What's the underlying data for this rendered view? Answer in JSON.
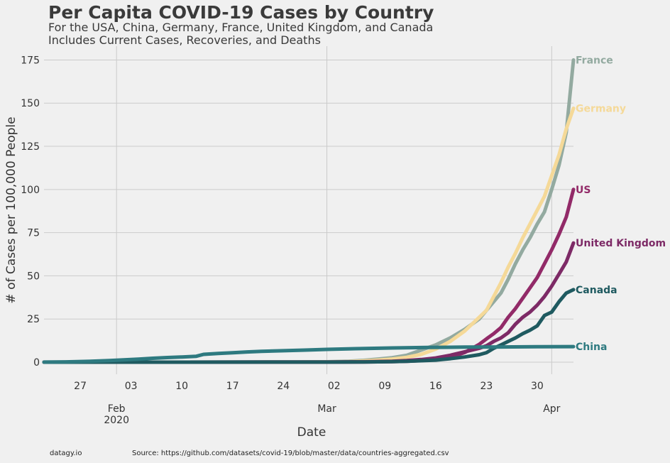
{
  "chart_data": {
    "type": "line",
    "title": "Per Capita COVID-19 Cases by Country",
    "subtitle": [
      "For the USA, China, Germany, France, United Kingdom, and Canada",
      "Includes Current Cases, Recoveries, and Deaths"
    ],
    "xlabel": "Date",
    "ylabel": "# of Cases per 100,000 People",
    "xlim": [
      "2020-01-22",
      "2020-04-04"
    ],
    "ylim": [
      -7,
      183
    ],
    "grid": true,
    "yticks": [
      0,
      25,
      50,
      75,
      100,
      125,
      150,
      175
    ],
    "xticks_minor": [
      {
        "date": "2020-01-27",
        "label": "27"
      },
      {
        "date": "2020-02-03",
        "label": "03"
      },
      {
        "date": "2020-02-10",
        "label": "10"
      },
      {
        "date": "2020-02-17",
        "label": "17"
      },
      {
        "date": "2020-02-24",
        "label": "24"
      },
      {
        "date": "2020-03-02",
        "label": "02"
      },
      {
        "date": "2020-03-09",
        "label": "09"
      },
      {
        "date": "2020-03-16",
        "label": "16"
      },
      {
        "date": "2020-03-23",
        "label": "23"
      },
      {
        "date": "2020-03-30",
        "label": "30"
      }
    ],
    "xticks_major": [
      {
        "date": "2020-02-01",
        "label": "Feb",
        "sublabel": "2020"
      },
      {
        "date": "2020-03-01",
        "label": "Mar",
        "sublabel": ""
      },
      {
        "date": "2020-04-01",
        "label": "Apr",
        "sublabel": ""
      }
    ],
    "series": [
      {
        "name": "France",
        "color": "#93aaa0",
        "points": [
          [
            "2020-01-22",
            0
          ],
          [
            "2020-02-26",
            0.05
          ],
          [
            "2020-03-01",
            0.2
          ],
          [
            "2020-03-04",
            0.5
          ],
          [
            "2020-03-06",
            1
          ],
          [
            "2020-03-08",
            1.7
          ],
          [
            "2020-03-10",
            2.6
          ],
          [
            "2020-03-12",
            4
          ],
          [
            "2020-03-14",
            7
          ],
          [
            "2020-03-16",
            10
          ],
          [
            "2020-03-18",
            14
          ],
          [
            "2020-03-20",
            19
          ],
          [
            "2020-03-22",
            25
          ],
          [
            "2020-03-23",
            30
          ],
          [
            "2020-03-24",
            35
          ],
          [
            "2020-03-25",
            40
          ],
          [
            "2020-03-26",
            48
          ],
          [
            "2020-03-27",
            57
          ],
          [
            "2020-03-28",
            65
          ],
          [
            "2020-03-29",
            72
          ],
          [
            "2020-03-30",
            80
          ],
          [
            "2020-03-31",
            87
          ],
          [
            "2020-04-01",
            100
          ],
          [
            "2020-04-02",
            114
          ],
          [
            "2020-04-03",
            133
          ],
          [
            "2020-04-04",
            175
          ]
        ]
      },
      {
        "name": "Germany",
        "color": "#f5d998",
        "points": [
          [
            "2020-01-22",
            0
          ],
          [
            "2020-02-26",
            0.05
          ],
          [
            "2020-03-01",
            0.15
          ],
          [
            "2020-03-04",
            0.3
          ],
          [
            "2020-03-06",
            0.7
          ],
          [
            "2020-03-08",
            1.2
          ],
          [
            "2020-03-10",
            1.8
          ],
          [
            "2020-03-12",
            2.8
          ],
          [
            "2020-03-14",
            4.5
          ],
          [
            "2020-03-16",
            7.5
          ],
          [
            "2020-03-18",
            12
          ],
          [
            "2020-03-20",
            18
          ],
          [
            "2020-03-22",
            26
          ],
          [
            "2020-03-23",
            30
          ],
          [
            "2020-03-24",
            38
          ],
          [
            "2020-03-25",
            46
          ],
          [
            "2020-03-26",
            55
          ],
          [
            "2020-03-27",
            63
          ],
          [
            "2020-03-28",
            72
          ],
          [
            "2020-03-29",
            80
          ],
          [
            "2020-03-30",
            88
          ],
          [
            "2020-03-31",
            96
          ],
          [
            "2020-04-01",
            108
          ],
          [
            "2020-04-02",
            120
          ],
          [
            "2020-04-03",
            135
          ],
          [
            "2020-04-04",
            147
          ]
        ]
      },
      {
        "name": "US",
        "color": "#922a68",
        "points": [
          [
            "2020-01-22",
            0
          ],
          [
            "2020-03-01",
            0.05
          ],
          [
            "2020-03-06",
            0.1
          ],
          [
            "2020-03-10",
            0.3
          ],
          [
            "2020-03-12",
            0.5
          ],
          [
            "2020-03-14",
            0.9
          ],
          [
            "2020-03-16",
            1.4
          ],
          [
            "2020-03-18",
            2.7
          ],
          [
            "2020-03-20",
            5.6
          ],
          [
            "2020-03-22",
            10.3
          ],
          [
            "2020-03-23",
            13.5
          ],
          [
            "2020-03-24",
            16.5
          ],
          [
            "2020-03-25",
            20
          ],
          [
            "2020-03-26",
            26
          ],
          [
            "2020-03-27",
            31
          ],
          [
            "2020-03-28",
            37
          ],
          [
            "2020-03-29",
            43
          ],
          [
            "2020-03-30",
            49
          ],
          [
            "2020-03-31",
            57
          ],
          [
            "2020-04-01",
            65
          ],
          [
            "2020-04-02",
            74
          ],
          [
            "2020-04-03",
            84
          ],
          [
            "2020-04-04",
            100
          ]
        ]
      },
      {
        "name": "United Kingdom",
        "color": "#7d2a66",
        "points": [
          [
            "2020-01-22",
            0
          ],
          [
            "2020-03-01",
            0.05
          ],
          [
            "2020-03-06",
            0.2
          ],
          [
            "2020-03-10",
            0.5
          ],
          [
            "2020-03-12",
            0.9
          ],
          [
            "2020-03-14",
            1.5
          ],
          [
            "2020-03-16",
            2.4
          ],
          [
            "2020-03-18",
            4
          ],
          [
            "2020-03-20",
            6
          ],
          [
            "2020-03-22",
            8
          ],
          [
            "2020-03-23",
            9.5
          ],
          [
            "2020-03-24",
            12
          ],
          [
            "2020-03-25",
            14
          ],
          [
            "2020-03-26",
            17
          ],
          [
            "2020-03-27",
            22
          ],
          [
            "2020-03-28",
            26
          ],
          [
            "2020-03-29",
            29
          ],
          [
            "2020-03-30",
            33
          ],
          [
            "2020-03-31",
            38
          ],
          [
            "2020-04-01",
            44
          ],
          [
            "2020-04-02",
            51
          ],
          [
            "2020-04-03",
            58
          ],
          [
            "2020-04-04",
            69
          ]
        ]
      },
      {
        "name": "Canada",
        "color": "#1f5a60",
        "points": [
          [
            "2020-01-22",
            0
          ],
          [
            "2020-03-01",
            0.05
          ],
          [
            "2020-03-06",
            0.1
          ],
          [
            "2020-03-10",
            0.3
          ],
          [
            "2020-03-12",
            0.5
          ],
          [
            "2020-03-14",
            0.8
          ],
          [
            "2020-03-16",
            1.2
          ],
          [
            "2020-03-18",
            2
          ],
          [
            "2020-03-20",
            3
          ],
          [
            "2020-03-22",
            4.3
          ],
          [
            "2020-03-23",
            5.5
          ],
          [
            "2020-03-24",
            8
          ],
          [
            "2020-03-25",
            10
          ],
          [
            "2020-03-26",
            12
          ],
          [
            "2020-03-27",
            14
          ],
          [
            "2020-03-28",
            16.5
          ],
          [
            "2020-03-29",
            18.5
          ],
          [
            "2020-03-30",
            21
          ],
          [
            "2020-03-31",
            27
          ],
          [
            "2020-04-01",
            29
          ],
          [
            "2020-04-02",
            35
          ],
          [
            "2020-04-03",
            40
          ],
          [
            "2020-04-04",
            42
          ]
        ]
      },
      {
        "name": "China",
        "color": "#2e7a80",
        "points": [
          [
            "2020-01-22",
            0.04
          ],
          [
            "2020-01-25",
            0.15
          ],
          [
            "2020-01-28",
            0.45
          ],
          [
            "2020-01-31",
            0.9
          ],
          [
            "2020-02-02",
            1.3
          ],
          [
            "2020-02-04",
            1.75
          ],
          [
            "2020-02-06",
            2.25
          ],
          [
            "2020-02-08",
            2.65
          ],
          [
            "2020-02-10",
            3.0
          ],
          [
            "2020-02-12",
            3.4
          ],
          [
            "2020-02-13",
            4.5
          ],
          [
            "2020-02-15",
            5.0
          ],
          [
            "2020-02-17",
            5.4
          ],
          [
            "2020-02-19",
            5.9
          ],
          [
            "2020-02-21",
            6.3
          ],
          [
            "2020-02-24",
            6.6
          ],
          [
            "2020-02-27",
            7.0
          ],
          [
            "2020-03-01",
            7.4
          ],
          [
            "2020-03-05",
            7.8
          ],
          [
            "2020-03-10",
            8.2
          ],
          [
            "2020-03-15",
            8.5
          ],
          [
            "2020-03-20",
            8.7
          ],
          [
            "2020-03-25",
            8.8
          ],
          [
            "2020-03-30",
            8.9
          ],
          [
            "2020-04-04",
            9.0
          ]
        ]
      }
    ],
    "series_labels": [
      "France",
      "Germany",
      "US",
      "United Kingdom",
      "Canada",
      "China"
    ]
  },
  "footer": {
    "credit": "datagy.io",
    "source": "Source: https://github.com/datasets/covid-19/blob/master/data/countries-aggregated.csv"
  }
}
